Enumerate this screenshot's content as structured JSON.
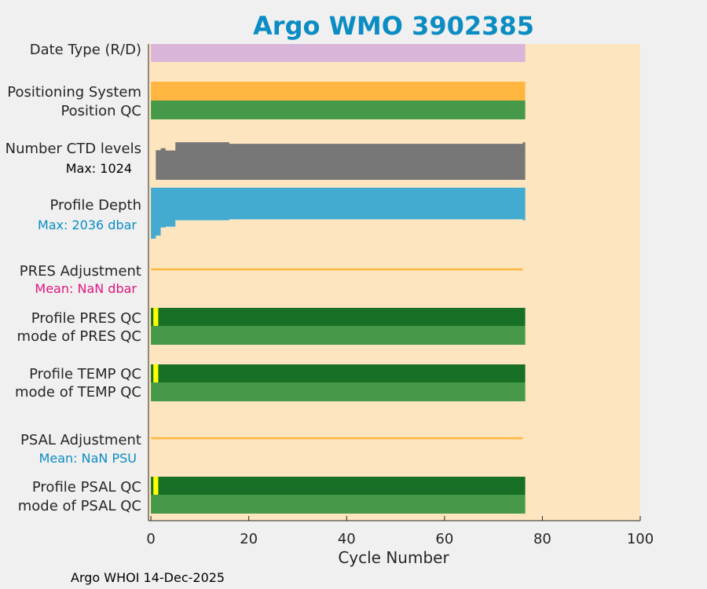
{
  "chart_data": {
    "type": "bar",
    "title": "Argo WMO 3902385",
    "xlabel": "Cycle Number",
    "xlim": [
      -0.5,
      100
    ],
    "xticks": [
      0,
      20,
      40,
      60,
      80,
      100
    ],
    "colors": {
      "background": "#fde6bf",
      "date_type": "#d9b6d9",
      "positioning": "#ffb640",
      "qc_good": "#47994a",
      "qc_profile": "#177025",
      "qc_flag": "#ffff00",
      "ctd": "#777777",
      "depth": "#43abd0",
      "adjustment": "#ffb640",
      "max_ctd_text": "#000000",
      "max_depth_text": "#0a8cc2",
      "pres_mean_text": "#e0157c",
      "psal_mean_text": "#0a8cc2"
    },
    "rows": [
      {
        "label": "Date Type (R/D)",
        "sublabel": ""
      },
      {
        "label": "Positioning System",
        "sublabel": ""
      },
      {
        "label": "Position QC",
        "sublabel": ""
      },
      {
        "label": "Number CTD levels",
        "sublabel": "Max: 1024"
      },
      {
        "label": "Profile Depth",
        "sublabel": "Max: 2036 dbar"
      },
      {
        "label": "PRES Adjustment",
        "sublabel": "Mean:  NaN dbar"
      },
      {
        "label": "Profile PRES QC",
        "sublabel": ""
      },
      {
        "label": "mode of PRES QC",
        "sublabel": ""
      },
      {
        "label": "Profile TEMP QC",
        "sublabel": ""
      },
      {
        "label": "mode of TEMP QC",
        "sublabel": ""
      },
      {
        "label": "PSAL Adjustment",
        "sublabel": "Mean:  NaN PSU"
      },
      {
        "label": "Profile PSAL QC",
        "sublabel": ""
      },
      {
        "label": "mode of PSAL QC",
        "sublabel": ""
      }
    ],
    "cycle_range": [
      0,
      76
    ],
    "ctd_levels": {
      "max": 1024,
      "cycles": [
        0,
        1,
        2,
        3,
        4,
        5,
        16,
        19,
        34,
        43,
        52,
        72,
        76
      ],
      "values": [
        0,
        790,
        840,
        780,
        780,
        1000,
        960,
        960,
        960,
        960,
        960,
        960,
        1000
      ]
    },
    "profile_depth": {
      "max": 2036,
      "cycles": [
        0,
        1,
        2,
        3,
        4,
        5,
        16,
        19,
        34,
        43,
        52,
        72,
        76
      ],
      "values": [
        2000,
        1880,
        1560,
        1530,
        1530,
        1280,
        1240,
        1240,
        1240,
        1240,
        1240,
        1240,
        1280
      ]
    },
    "flag_cycles": [
      1
    ],
    "footer": "Argo WHOI 14-Dec-2025"
  }
}
